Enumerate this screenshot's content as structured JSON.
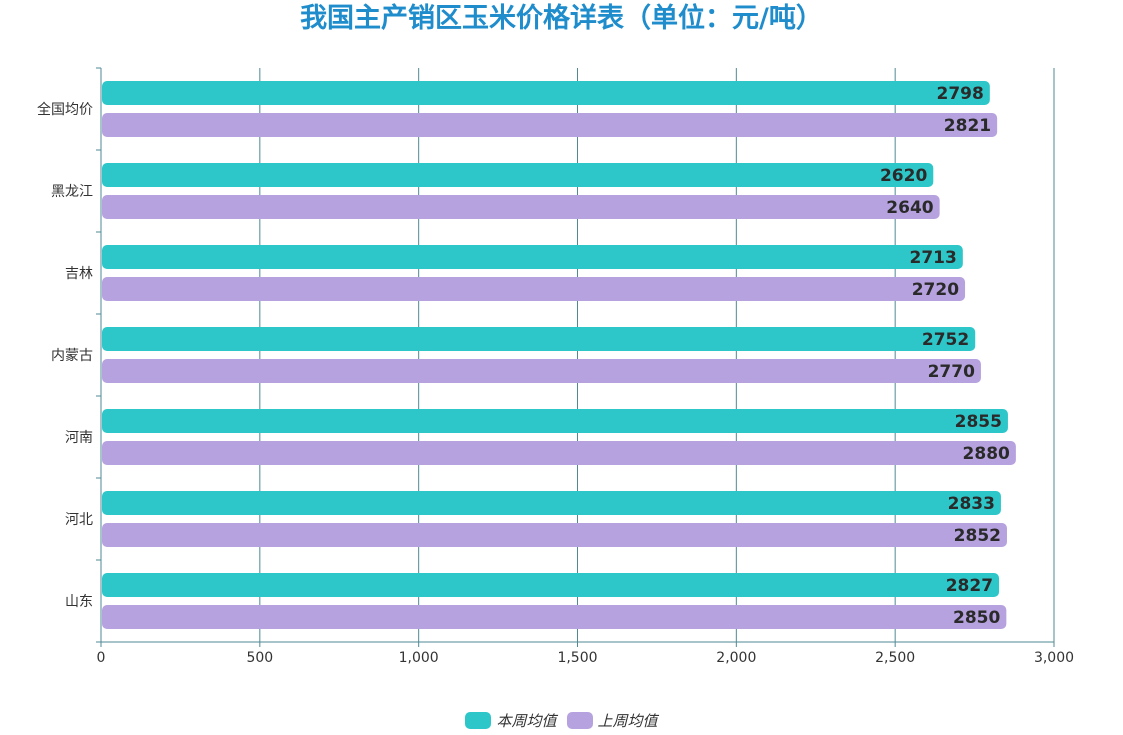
{
  "chart_data": {
    "type": "bar",
    "orientation": "horizontal",
    "title": "我国主产销区玉米价格详表（单位：元/吨）",
    "categories": [
      "全国均价",
      "黑龙江",
      "吉林",
      "内蒙古",
      "河南",
      "河北",
      "山东"
    ],
    "series": [
      {
        "name": "本周均值",
        "values": [
          2798,
          2620,
          2713,
          2752,
          2855,
          2833,
          2827
        ],
        "color": "#2ec7c9"
      },
      {
        "name": "上周均值",
        "values": [
          2821,
          2640,
          2720,
          2770,
          2880,
          2852,
          2850
        ],
        "color": "#b6a2de"
      }
    ],
    "xlim": [
      0,
      3000
    ],
    "x_ticks": [
      "0",
      "500",
      "1,000",
      "1,500",
      "2,000",
      "2,500",
      "3,000"
    ],
    "xlabel": "",
    "ylabel": "",
    "grid": "vertical",
    "legend_position": "bottom-center"
  }
}
